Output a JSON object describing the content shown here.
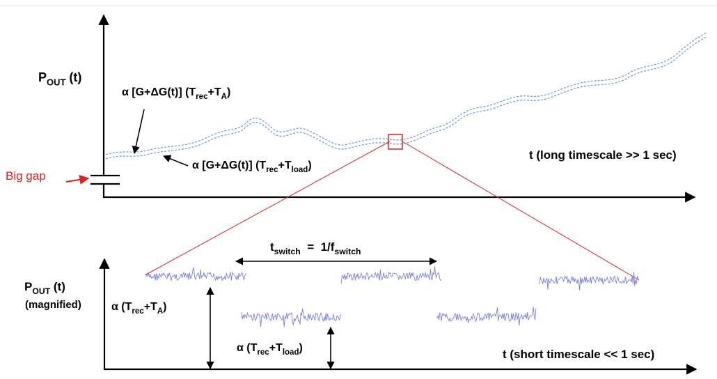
{
  "top_panel": {
    "y_label": [
      {
        "text": "P"
      },
      {
        "text": "OUT",
        "sub": true
      },
      {
        "text": " (t)"
      }
    ],
    "x_label": "t (long timescale >> 1 sec)",
    "gap_label": "Big gap",
    "upper_trace_label": [
      {
        "text": "α [G+ΔG(t)] (T"
      },
      {
        "text": "rec",
        "sub": true
      },
      {
        "text": "+T"
      },
      {
        "text": "A",
        "sub": true
      },
      {
        "text": ")"
      }
    ],
    "lower_trace_label": [
      {
        "text": "α [G+ΔG(t)] (T"
      },
      {
        "text": "rec",
        "sub": true
      },
      {
        "text": "+T"
      },
      {
        "text": "load",
        "sub": true
      },
      {
        "text": ")"
      }
    ]
  },
  "bottom_panel": {
    "y_label": [
      {
        "text": "P"
      },
      {
        "text": "OUT",
        "sub": true
      },
      {
        "text": " (t)"
      }
    ],
    "y_label_note": "(magnified)",
    "x_label": "t (short timescale << 1 sec)",
    "switch_label": [
      {
        "text": "t"
      },
      {
        "text": "switch",
        "sub": true
      },
      {
        "text": "  =  1/f"
      },
      {
        "text": "switch",
        "sub": true
      }
    ],
    "high_level_label": [
      {
        "text": "α (T"
      },
      {
        "text": "rec",
        "sub": true
      },
      {
        "text": "+T"
      },
      {
        "text": "A",
        "sub": true
      },
      {
        "text": ")"
      }
    ],
    "low_level_label": [
      {
        "text": "α (T"
      },
      {
        "text": "rec",
        "sub": true
      },
      {
        "text": "+T"
      },
      {
        "text": "load",
        "sub": true
      },
      {
        "text": ")"
      }
    ]
  }
}
